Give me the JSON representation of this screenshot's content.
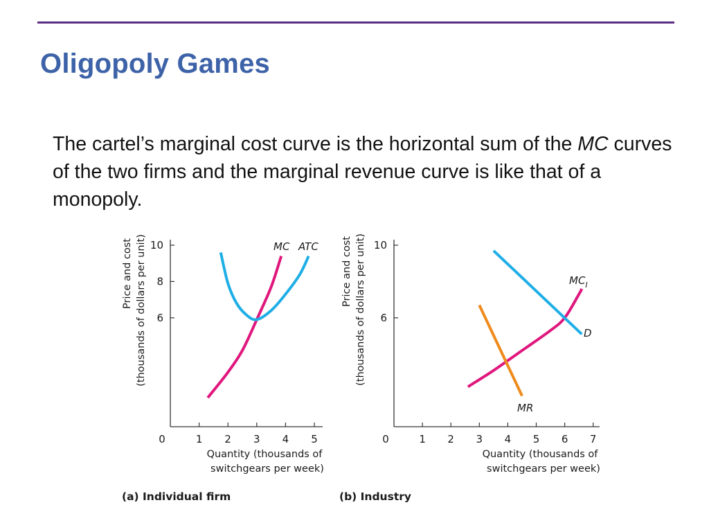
{
  "slide": {
    "title": "Oligopoly Games",
    "body_part1": "The cartel’s marginal cost curve is the horizontal sum of the ",
    "body_italic": "MC",
    "body_part2": " curves of the two firms and the marginal revenue curve is like that of a monopoly."
  },
  "colors": {
    "title": "#3d62a8",
    "rule": "#5a2d82",
    "mc": "#e0177d",
    "atc": "#1eaee6",
    "demand": "#1eaee6",
    "mr": "#ef8a1c"
  },
  "chart_data": [
    {
      "type": "line",
      "caption": "(a) Individual firm",
      "xlabel_line1": "Quantity (thousands of",
      "xlabel_line2": "switchgears per week)",
      "ylabel_line1": "Price and cost",
      "ylabel_line2": "(thousands of dollars per unit)",
      "xlim": [
        0,
        5.3
      ],
      "ylim": [
        0,
        10.2
      ],
      "xticks": [
        0,
        1,
        2,
        3,
        4,
        5
      ],
      "yticks": [
        6,
        8,
        10
      ],
      "series": [
        {
          "name": "MC",
          "color": "#e0177d",
          "points": [
            [
              1.3,
              1.6
            ],
            [
              2.0,
              3.0
            ],
            [
              2.5,
              4.2
            ],
            [
              3.0,
              5.9
            ],
            [
              3.5,
              7.7
            ],
            [
              3.85,
              9.4
            ]
          ]
        },
        {
          "name": "ATC",
          "color": "#1eaee6",
          "points": [
            [
              1.75,
              9.6
            ],
            [
              2.0,
              7.9
            ],
            [
              2.3,
              6.8
            ],
            [
              2.65,
              6.15
            ],
            [
              3.0,
              5.9
            ],
            [
              3.5,
              6.4
            ],
            [
              4.0,
              7.3
            ],
            [
              4.5,
              8.4
            ],
            [
              4.8,
              9.4
            ]
          ]
        }
      ]
    },
    {
      "type": "line",
      "caption": "(b) Industry",
      "xlabel_line1": "Quantity (thousands of",
      "xlabel_line2": "switchgears per week)",
      "ylabel_line1": "Price and cost",
      "ylabel_line2": "(thousands of dollars per unit)",
      "xlim": [
        0,
        7.3
      ],
      "ylim": [
        0,
        10.2
      ],
      "xticks": [
        0,
        1,
        2,
        3,
        4,
        5,
        6,
        7
      ],
      "yticks": [
        6,
        10
      ],
      "series": [
        {
          "name": "MCI",
          "color": "#e0177d",
          "points": [
            [
              2.6,
              2.2
            ],
            [
              3.5,
              3.1
            ],
            [
              4.5,
              4.2
            ],
            [
              5.5,
              5.3
            ],
            [
              6.0,
              6.0
            ],
            [
              6.5,
              7.3
            ],
            [
              6.6,
              7.6
            ]
          ]
        },
        {
          "name": "D",
          "color": "#1eaee6",
          "points": [
            [
              3.5,
              9.7
            ],
            [
              6.6,
              5.1
            ]
          ]
        },
        {
          "name": "MR",
          "color": "#ef8a1c",
          "points": [
            [
              3.0,
              6.7
            ],
            [
              4.5,
              1.7
            ]
          ]
        }
      ]
    }
  ]
}
